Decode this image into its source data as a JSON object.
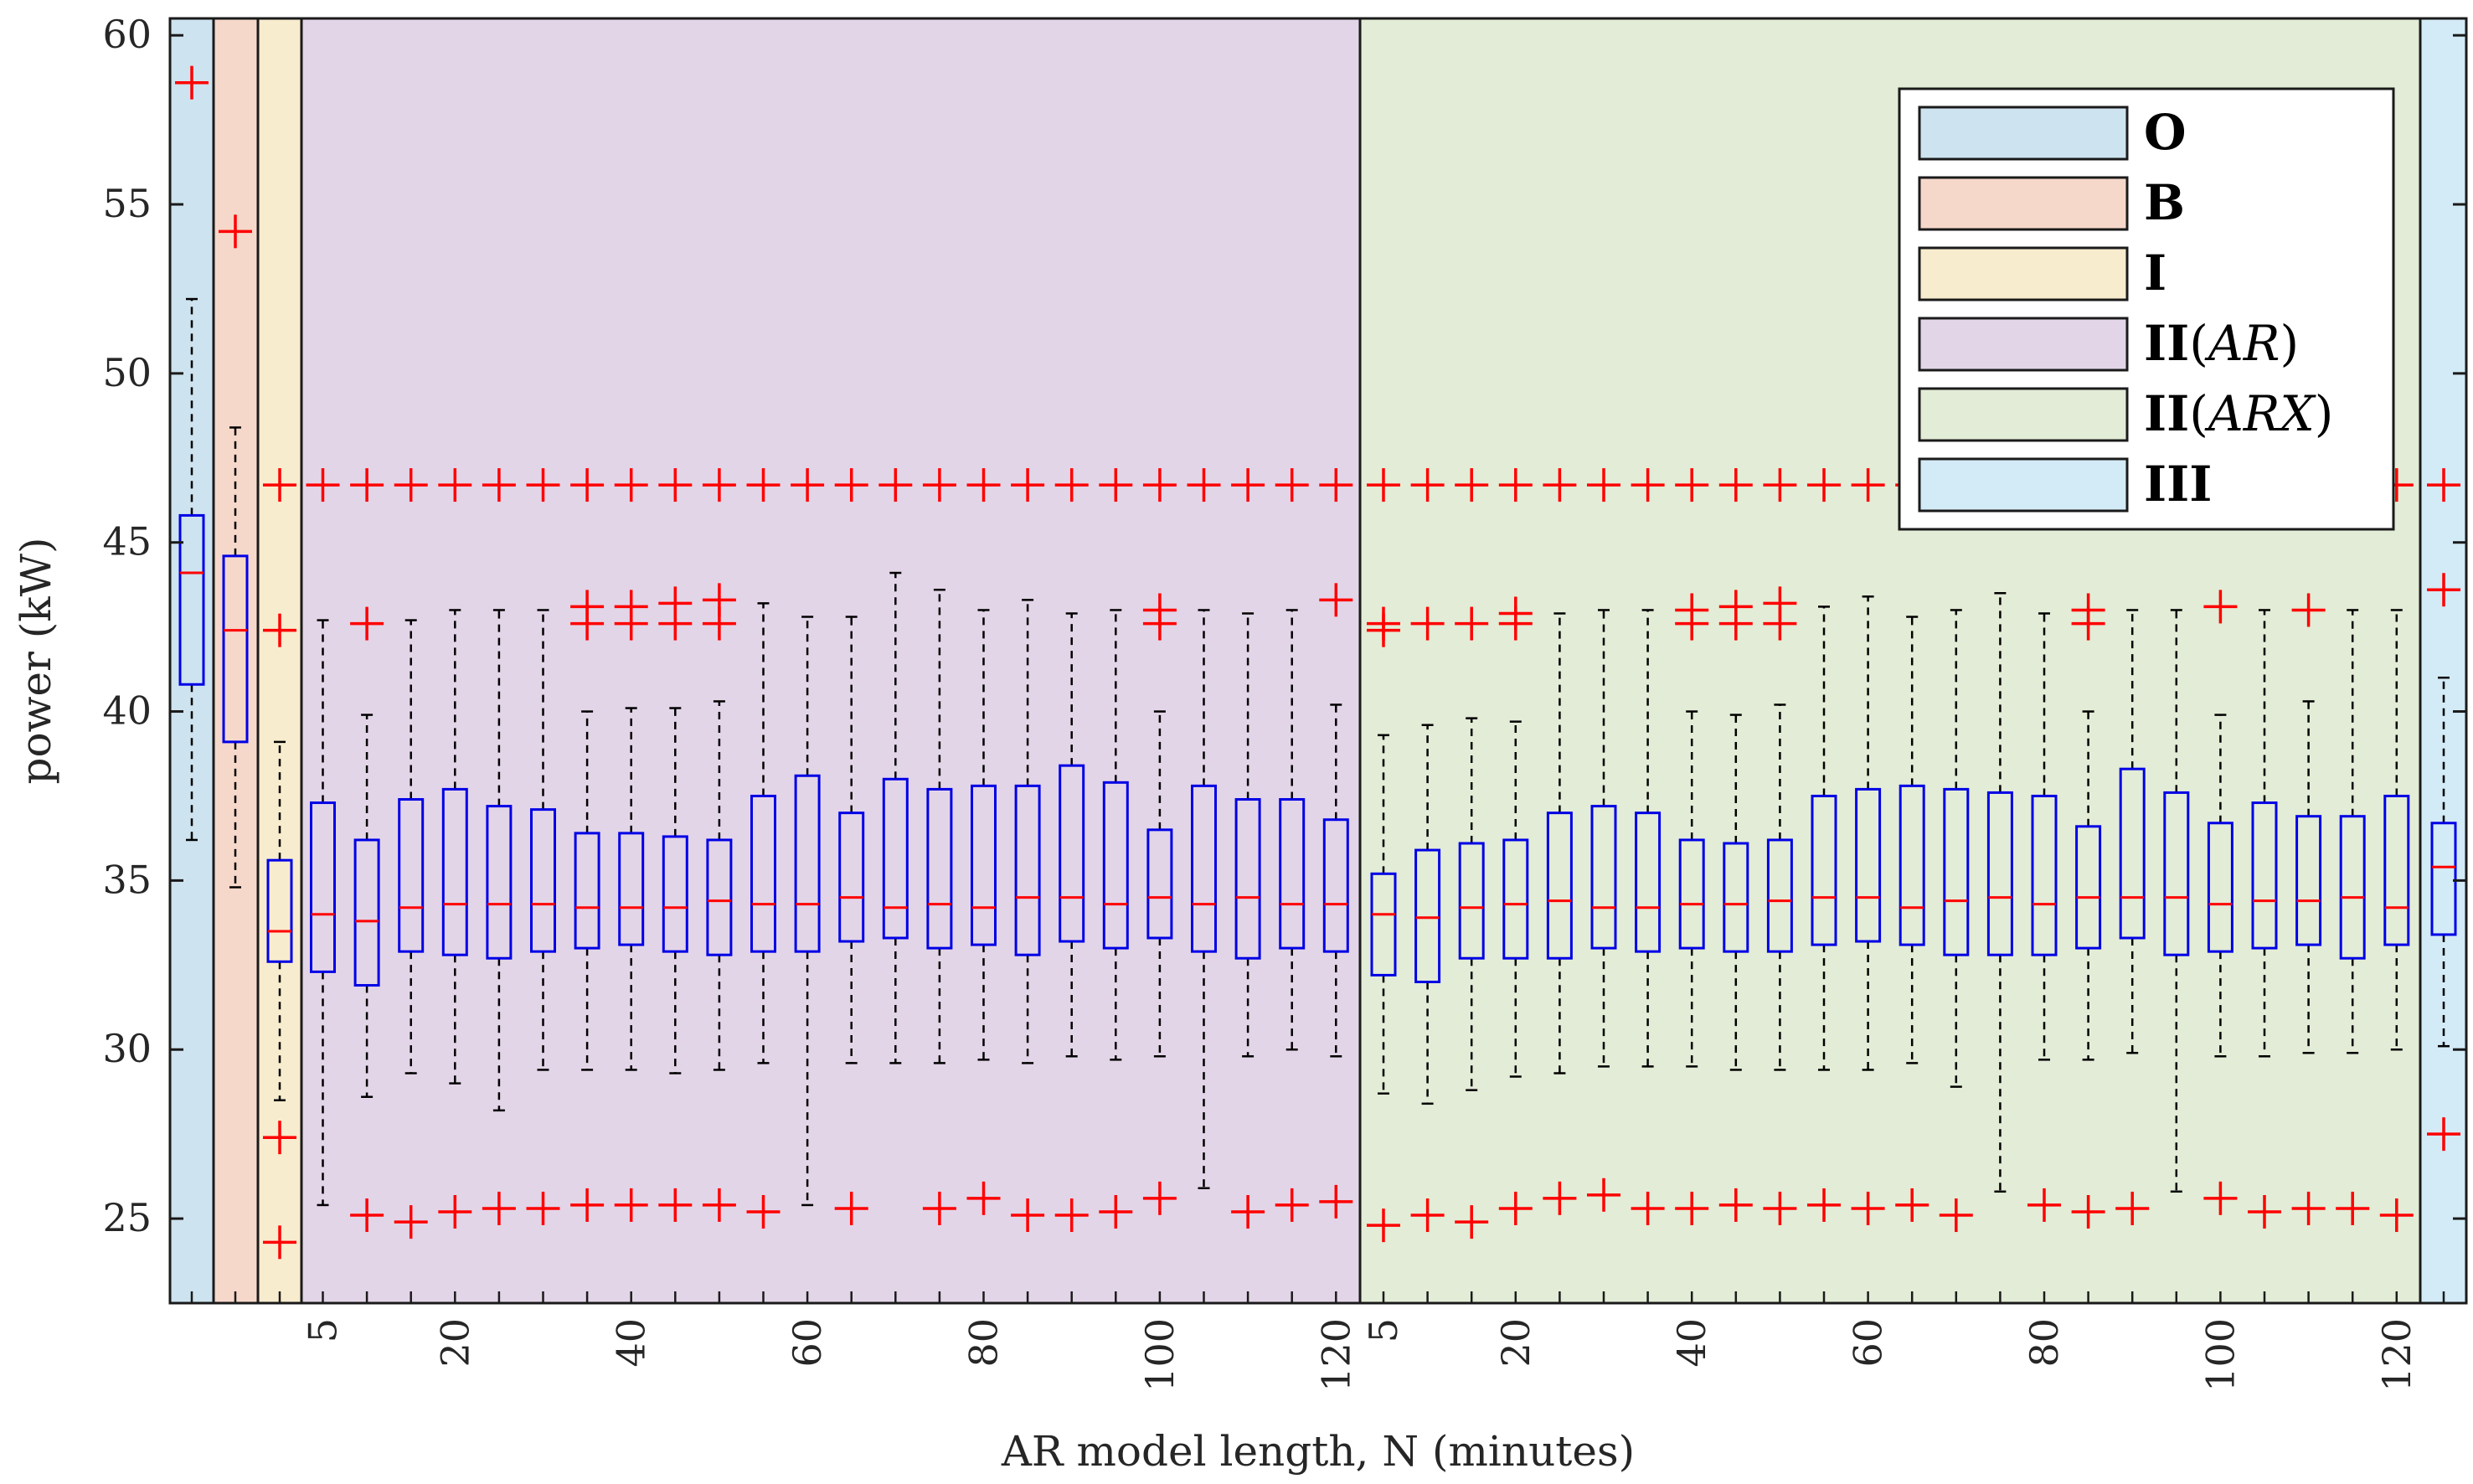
{
  "chart_data": {
    "type": "box",
    "xlabel": "AR model length, N (minutes)",
    "ylabel": "power (kW)",
    "ylim": [
      22.5,
      60.5
    ],
    "yticks": [
      25,
      30,
      35,
      40,
      45,
      50,
      55,
      60
    ],
    "grid": false,
    "legend_position": "top-right",
    "colors": {
      "box_edge": "#0000e6",
      "median": "#ff0000",
      "outlier": "#ff0000",
      "whisker": "#000000"
    },
    "regions": [
      {
        "key": "O",
        "label_bold": "O",
        "label_rest": "",
        "color": "#cde3ef",
        "boxes": 1
      },
      {
        "key": "B",
        "label_bold": "B",
        "label_rest": "",
        "color": "#f6d8cb",
        "boxes": 1
      },
      {
        "key": "I",
        "label_bold": "I",
        "label_rest": "",
        "color": "#f8ecce",
        "boxes": 1
      },
      {
        "key": "II_AR",
        "label_bold": "II",
        "label_rest": "(AR)",
        "color": "#e3d5e8",
        "boxes": 24
      },
      {
        "key": "II_ARX",
        "label_bold": "II",
        "label_rest": "(ARX)",
        "color": "#e3ecd6",
        "boxes": 24
      },
      {
        "key": "III",
        "label_bold": "III",
        "label_rest": "",
        "color": "#d3ebf7",
        "boxes": 1
      }
    ],
    "x_tick_labels": [
      "5",
      "20",
      "40",
      "60",
      "80",
      "100",
      "120"
    ],
    "x_tick_N": [
      5,
      20,
      40,
      60,
      80,
      100,
      120
    ],
    "N_values": [
      5,
      10,
      15,
      20,
      25,
      30,
      35,
      40,
      45,
      50,
      55,
      60,
      65,
      70,
      75,
      80,
      85,
      90,
      95,
      100,
      105,
      110,
      115,
      120
    ],
    "series": [
      {
        "region": "O",
        "boxes": [
          {
            "q1": 40.8,
            "median": 44.1,
            "q3": 45.8,
            "low": 36.2,
            "high": 52.2,
            "outliers": [
              58.6
            ]
          }
        ]
      },
      {
        "region": "B",
        "boxes": [
          {
            "q1": 39.1,
            "median": 42.4,
            "q3": 44.6,
            "low": 34.8,
            "high": 48.4,
            "outliers": [
              54.2
            ]
          }
        ]
      },
      {
        "region": "I",
        "boxes": [
          {
            "q1": 32.6,
            "median": 33.5,
            "q3": 35.6,
            "low": 28.5,
            "high": 39.1,
            "outliers": [
              46.7,
              42.4,
              27.4,
              24.3
            ]
          }
        ]
      },
      {
        "region": "II_AR",
        "boxes": [
          {
            "q1": 32.3,
            "median": 34.0,
            "q3": 37.3,
            "low": 25.4,
            "high": 42.7,
            "outliers": [
              46.7
            ]
          },
          {
            "q1": 31.9,
            "median": 33.8,
            "q3": 36.2,
            "low": 28.6,
            "high": 39.9,
            "outliers": [
              46.7,
              42.6,
              25.1
            ]
          },
          {
            "q1": 32.9,
            "median": 34.2,
            "q3": 37.4,
            "low": 29.3,
            "high": 42.7,
            "outliers": [
              46.7,
              24.9
            ]
          },
          {
            "q1": 32.8,
            "median": 34.3,
            "q3": 37.7,
            "low": 29.0,
            "high": 43.0,
            "outliers": [
              46.7,
              25.2
            ]
          },
          {
            "q1": 32.7,
            "median": 34.3,
            "q3": 37.2,
            "low": 28.2,
            "high": 43.0,
            "outliers": [
              46.7,
              25.3
            ]
          },
          {
            "q1": 32.9,
            "median": 34.3,
            "q3": 37.1,
            "low": 29.4,
            "high": 43.0,
            "outliers": [
              46.7,
              25.3
            ]
          },
          {
            "q1": 33.0,
            "median": 34.2,
            "q3": 36.4,
            "low": 29.4,
            "high": 40.0,
            "outliers": [
              46.7,
              43.1,
              42.6,
              25.4
            ]
          },
          {
            "q1": 33.1,
            "median": 34.2,
            "q3": 36.4,
            "low": 29.4,
            "high": 40.1,
            "outliers": [
              46.7,
              43.1,
              42.6,
              25.4
            ]
          },
          {
            "q1": 32.9,
            "median": 34.2,
            "q3": 36.3,
            "low": 29.3,
            "high": 40.1,
            "outliers": [
              46.7,
              43.2,
              42.6,
              25.4
            ]
          },
          {
            "q1": 32.8,
            "median": 34.4,
            "q3": 36.2,
            "low": 29.4,
            "high": 40.3,
            "outliers": [
              46.7,
              43.3,
              42.6,
              25.4
            ]
          },
          {
            "q1": 32.9,
            "median": 34.3,
            "q3": 37.5,
            "low": 29.6,
            "high": 43.2,
            "outliers": [
              46.7,
              25.2
            ]
          },
          {
            "q1": 32.9,
            "median": 34.3,
            "q3": 38.1,
            "low": 25.4,
            "high": 42.8,
            "outliers": [
              46.7
            ]
          },
          {
            "q1": 33.2,
            "median": 34.5,
            "q3": 37.0,
            "low": 29.6,
            "high": 42.8,
            "outliers": [
              46.7,
              25.3
            ]
          },
          {
            "q1": 33.3,
            "median": 34.2,
            "q3": 38.0,
            "low": 29.6,
            "high": 44.1,
            "outliers": [
              46.7
            ]
          },
          {
            "q1": 33.0,
            "median": 34.3,
            "q3": 37.7,
            "low": 29.6,
            "high": 43.6,
            "outliers": [
              46.7,
              25.3
            ]
          },
          {
            "q1": 33.1,
            "median": 34.2,
            "q3": 37.8,
            "low": 29.7,
            "high": 43.0,
            "outliers": [
              46.7,
              25.6
            ]
          },
          {
            "q1": 32.8,
            "median": 34.5,
            "q3": 37.8,
            "low": 29.6,
            "high": 43.3,
            "outliers": [
              46.7,
              25.1
            ]
          },
          {
            "q1": 33.2,
            "median": 34.5,
            "q3": 38.4,
            "low": 29.8,
            "high": 42.9,
            "outliers": [
              46.7,
              25.1
            ]
          },
          {
            "q1": 33.0,
            "median": 34.3,
            "q3": 37.9,
            "low": 29.7,
            "high": 43.0,
            "outliers": [
              46.7,
              25.2
            ]
          },
          {
            "q1": 33.3,
            "median": 34.5,
            "q3": 36.5,
            "low": 29.8,
            "high": 40.0,
            "outliers": [
              46.7,
              43.0,
              42.6,
              25.6
            ]
          },
          {
            "q1": 32.9,
            "median": 34.3,
            "q3": 37.8,
            "low": 25.9,
            "high": 43.0,
            "outliers": [
              46.7
            ]
          },
          {
            "q1": 32.7,
            "median": 34.5,
            "q3": 37.4,
            "low": 29.8,
            "high": 42.9,
            "outliers": [
              46.7,
              25.2
            ]
          },
          {
            "q1": 33.0,
            "median": 34.3,
            "q3": 37.4,
            "low": 30.0,
            "high": 43.0,
            "outliers": [
              46.7,
              25.4
            ]
          },
          {
            "q1": 32.9,
            "median": 34.3,
            "q3": 36.8,
            "low": 29.8,
            "high": 40.2,
            "outliers": [
              46.7,
              43.3,
              25.5
            ]
          }
        ]
      },
      {
        "region": "II_ARX",
        "boxes": [
          {
            "q1": 32.2,
            "median": 34.0,
            "q3": 35.2,
            "low": 28.7,
            "high": 39.3,
            "outliers": [
              46.7,
              42.6,
              42.4,
              24.8
            ]
          },
          {
            "q1": 32.0,
            "median": 33.9,
            "q3": 35.9,
            "low": 28.4,
            "high": 39.6,
            "outliers": [
              46.7,
              42.6,
              25.1
            ]
          },
          {
            "q1": 32.7,
            "median": 34.2,
            "q3": 36.1,
            "low": 28.8,
            "high": 39.8,
            "outliers": [
              46.7,
              42.6,
              24.9
            ]
          },
          {
            "q1": 32.7,
            "median": 34.3,
            "q3": 36.2,
            "low": 29.2,
            "high": 39.7,
            "outliers": [
              46.7,
              42.9,
              42.6,
              25.3
            ]
          },
          {
            "q1": 32.7,
            "median": 34.4,
            "q3": 37.0,
            "low": 29.3,
            "high": 42.9,
            "outliers": [
              46.7,
              25.6
            ]
          },
          {
            "q1": 33.0,
            "median": 34.2,
            "q3": 37.2,
            "low": 29.5,
            "high": 43.0,
            "outliers": [
              46.7,
              25.7
            ]
          },
          {
            "q1": 32.9,
            "median": 34.2,
            "q3": 37.0,
            "low": 29.5,
            "high": 43.0,
            "outliers": [
              46.7,
              25.3
            ]
          },
          {
            "q1": 33.0,
            "median": 34.3,
            "q3": 36.2,
            "low": 29.5,
            "high": 40.0,
            "outliers": [
              46.7,
              43.0,
              42.6,
              25.3
            ]
          },
          {
            "q1": 32.9,
            "median": 34.3,
            "q3": 36.1,
            "low": 29.4,
            "high": 39.9,
            "outliers": [
              46.7,
              43.1,
              42.6,
              25.4
            ]
          },
          {
            "q1": 32.9,
            "median": 34.4,
            "q3": 36.2,
            "low": 29.4,
            "high": 40.2,
            "outliers": [
              46.7,
              43.2,
              42.6,
              25.3
            ]
          },
          {
            "q1": 33.1,
            "median": 34.5,
            "q3": 37.5,
            "low": 29.4,
            "high": 43.1,
            "outliers": [
              46.7,
              25.4
            ]
          },
          {
            "q1": 33.2,
            "median": 34.5,
            "q3": 37.7,
            "low": 29.4,
            "high": 43.4,
            "outliers": [
              46.7,
              25.3
            ]
          },
          {
            "q1": 33.1,
            "median": 34.2,
            "q3": 37.8,
            "low": 29.6,
            "high": 42.8,
            "outliers": [
              46.7,
              25.4
            ]
          },
          {
            "q1": 32.8,
            "median": 34.4,
            "q3": 37.7,
            "low": 28.9,
            "high": 43.0,
            "outliers": [
              46.7,
              25.1
            ]
          },
          {
            "q1": 32.8,
            "median": 34.5,
            "q3": 37.6,
            "low": 25.8,
            "high": 43.5,
            "outliers": [
              46.7
            ]
          },
          {
            "q1": 32.8,
            "median": 34.3,
            "q3": 37.5,
            "low": 29.7,
            "high": 42.9,
            "outliers": [
              46.7,
              25.4
            ]
          },
          {
            "q1": 33.0,
            "median": 34.5,
            "q3": 36.6,
            "low": 29.7,
            "high": 40.0,
            "outliers": [
              46.7,
              43.0,
              42.6,
              25.2
            ]
          },
          {
            "q1": 33.3,
            "median": 34.5,
            "q3": 38.3,
            "low": 29.9,
            "high": 43.0,
            "outliers": [
              46.7,
              25.3
            ]
          },
          {
            "q1": 32.8,
            "median": 34.5,
            "q3": 37.6,
            "low": 25.8,
            "high": 43.0,
            "outliers": [
              46.7
            ]
          },
          {
            "q1": 32.9,
            "median": 34.3,
            "q3": 36.7,
            "low": 29.8,
            "high": 39.9,
            "outliers": [
              46.7,
              43.1,
              25.6
            ]
          },
          {
            "q1": 33.0,
            "median": 34.4,
            "q3": 37.3,
            "low": 29.8,
            "high": 43.0,
            "outliers": [
              46.7,
              25.2
            ]
          },
          {
            "q1": 33.1,
            "median": 34.4,
            "q3": 36.9,
            "low": 29.9,
            "high": 40.3,
            "outliers": [
              46.7,
              43.0,
              25.3
            ]
          },
          {
            "q1": 32.7,
            "median": 34.5,
            "q3": 36.9,
            "low": 29.9,
            "high": 43.0,
            "outliers": [
              46.7,
              25.3
            ]
          },
          {
            "q1": 33.1,
            "median": 34.2,
            "q3": 37.5,
            "low": 30.0,
            "high": 43.0,
            "outliers": [
              46.7,
              25.1
            ]
          }
        ]
      },
      {
        "region": "III",
        "boxes": [
          {
            "q1": 33.4,
            "median": 35.4,
            "q3": 36.7,
            "low": 30.1,
            "high": 41.0,
            "outliers": [
              46.7,
              43.6,
              27.5
            ]
          }
        ]
      }
    ]
  }
}
